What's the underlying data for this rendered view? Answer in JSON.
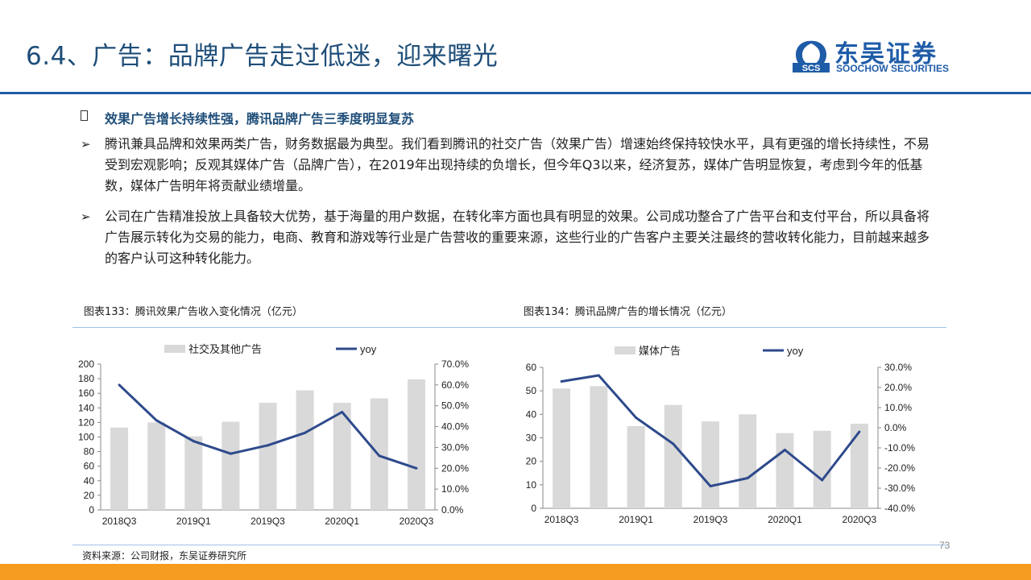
{
  "slide": {
    "title": "6.4、广告：品牌广告走过低迷，迎来曙光",
    "page_number": "73"
  },
  "logo": {
    "mark_text": "SCS",
    "name_cn": "东吴证券",
    "name_en": "SOOCHOW SECURITIES",
    "color": "#1f5ca8"
  },
  "body": {
    "heading": "效果广告增长持续性强，腾讯品牌广告三季度明显复苏",
    "bullets": [
      "腾讯兼具品牌和效果两类广告，财务数据最为典型。我们看到腾讯的社交广告（效果广告）增速始终保持较快水平，具有更强的增长持续性，不易受到宏观影响；反观其媒体广告（品牌广告），在2019年出现持续的负增长，但今年Q3以来，经济复苏，媒体广告明显恢复，考虑到今年的低基数，媒体广告明年将贡献业绩增量。",
      "公司在广告精准投放上具备较大优势，基于海量的用户数据，在转化率方面也具有明显的效果。公司成功整合了广告平台和支付平台，所以具备将广告展示转化为交易的能力，电商、教育和游戏等行业是广告营收的重要来源，这些行业的广告客户主要关注最终的营收转化能力，目前越来越多的客户认可这种转化能力。"
    ]
  },
  "captions": {
    "chart1": "图表133：腾讯效果广告收入变化情况（亿元）",
    "chart2": "图表134：腾讯品牌广告的增长情况（亿元）"
  },
  "source": "资料来源：公司财报，东吴证券研究所",
  "chart_data": [
    {
      "type": "bar",
      "categories": [
        "2018Q3",
        "2018Q4",
        "2019Q1",
        "2019Q2",
        "2019Q3",
        "2019Q4",
        "2020Q1",
        "2020Q2",
        "2020Q3"
      ],
      "x_tick_labels": [
        "2018Q3",
        "2019Q1",
        "2019Q3",
        "2020Q1",
        "2020Q3"
      ],
      "series": [
        {
          "name": "社交及其他广告",
          "type": "bar",
          "axis": "left",
          "color": "#d9d9d9",
          "values": [
            113,
            120,
            101,
            121,
            147,
            164,
            147,
            153,
            179
          ]
        },
        {
          "name": "yoy",
          "type": "line",
          "axis": "right",
          "color": "#2e4a8c",
          "values": [
            0.6,
            0.43,
            0.33,
            0.27,
            0.31,
            0.37,
            0.47,
            0.26,
            0.2
          ]
        }
      ],
      "ylim_left": [
        0,
        200
      ],
      "yticks_left": [
        "0",
        "20",
        "40",
        "60",
        "80",
        "100",
        "120",
        "140",
        "160",
        "180",
        "200"
      ],
      "ylim_right": [
        0,
        0.7
      ],
      "yticks_right": [
        "0.0%",
        "10.0%",
        "20.0%",
        "30.0%",
        "40.0%",
        "50.0%",
        "60.0%",
        "70.0%"
      ],
      "legend_position": "top",
      "grid": false
    },
    {
      "type": "bar",
      "categories": [
        "2018Q3",
        "2018Q4",
        "2019Q1",
        "2019Q2",
        "2019Q3",
        "2019Q4",
        "2020Q1",
        "2020Q2",
        "2020Q3"
      ],
      "x_tick_labels": [
        "2018Q3",
        "2019Q1",
        "2019Q3",
        "2020Q1",
        "2020Q3"
      ],
      "series": [
        {
          "name": "媒体广告",
          "type": "bar",
          "axis": "left",
          "color": "#d9d9d9",
          "values": [
            51,
            52,
            35,
            44,
            37,
            40,
            32,
            33,
            36
          ]
        },
        {
          "name": "yoy",
          "type": "line",
          "axis": "right",
          "color": "#2e4a8c",
          "values": [
            0.23,
            0.26,
            0.05,
            -0.08,
            -0.29,
            -0.25,
            -0.11,
            -0.26,
            -0.02
          ]
        }
      ],
      "ylim_left": [
        0,
        60
      ],
      "yticks_left": [
        "0",
        "10",
        "20",
        "30",
        "40",
        "50",
        "60"
      ],
      "ylim_right": [
        -0.4,
        0.3
      ],
      "yticks_right": [
        "-40.0%",
        "-30.0%",
        "-20.0%",
        "-10.0%",
        "0.0%",
        "10.0%",
        "20.0%",
        "30.0%"
      ],
      "legend_position": "top",
      "grid": false
    }
  ]
}
